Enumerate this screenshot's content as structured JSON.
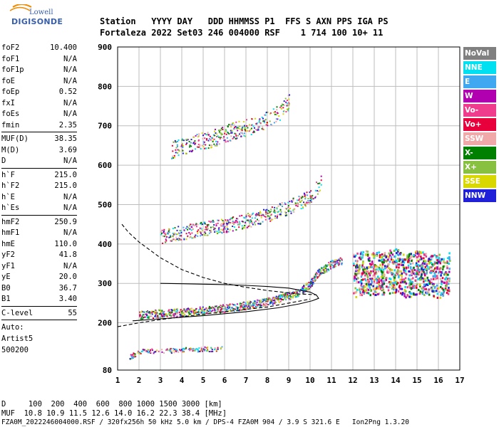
{
  "logo": {
    "line1": "Lowell",
    "line2": "DIGISONDE"
  },
  "header": {
    "row1": "Station   YYYY DAY   DDD HHMMSS P1  FFS S AXN PPS IGA PS",
    "row2": "Fortaleza 2022 Set03 246 004000 RSF    1 714 100 10+ 11"
  },
  "params": {
    "group1": [
      {
        "k": "foF2",
        "v": "10.400"
      },
      {
        "k": "foF1",
        "v": "N/A"
      },
      {
        "k": "foF1p",
        "v": "N/A"
      },
      {
        "k": "foE",
        "v": "N/A"
      },
      {
        "k": "foEp",
        "v": "0.52"
      },
      {
        "k": "fxI",
        "v": "N/A"
      },
      {
        "k": "foEs",
        "v": "N/A"
      },
      {
        "k": "fmin",
        "v": "2.35"
      }
    ],
    "group2": [
      {
        "k": "MUF(D)",
        "v": "38.35"
      },
      {
        "k": "M(D)",
        "v": "3.69"
      },
      {
        "k": "D",
        "v": "N/A"
      }
    ],
    "group3": [
      {
        "k": "h`F",
        "v": "215.0"
      },
      {
        "k": "h`F2",
        "v": "215.0"
      },
      {
        "k": "h`E",
        "v": "N/A"
      },
      {
        "k": "h`Es",
        "v": "N/A"
      }
    ],
    "group4": [
      {
        "k": "hmF2",
        "v": "250.9"
      },
      {
        "k": "hmF1",
        "v": "N/A"
      },
      {
        "k": "hmE",
        "v": "110.0"
      },
      {
        "k": "yF2",
        "v": "41.8"
      },
      {
        "k": "yF1",
        "v": "N/A"
      },
      {
        "k": "yE",
        "v": "20.0"
      },
      {
        "k": "B0",
        "v": "36.7"
      },
      {
        "k": "B1",
        "v": "3.40"
      }
    ],
    "group5": [
      {
        "k": "C-level",
        "v": "55"
      }
    ],
    "auto": [
      "Auto:",
      "Artist5",
      "500200"
    ]
  },
  "legend": [
    {
      "label": "NoVal",
      "color": "#808080"
    },
    {
      "label": "NNE",
      "color": "#00e0f0"
    },
    {
      "label": "E",
      "color": "#40a8f0"
    },
    {
      "label": "W",
      "color": "#b000b0"
    },
    {
      "label": "Vo-",
      "color": "#f03c8c"
    },
    {
      "label": "Vo+",
      "color": "#e8003c"
    },
    {
      "label": "SSW",
      "color": "#f0a8a8"
    },
    {
      "label": "X-",
      "color": "#008000"
    },
    {
      "label": "X+",
      "color": "#88c040"
    },
    {
      "label": "SSE",
      "color": "#d8d800"
    },
    {
      "label": "NNW",
      "color": "#2020d8"
    }
  ],
  "bottom": {
    "line1": "D     100  200  400  600  800 1000 1500 3000 [km]",
    "line2": "MUF  10.8 10.9 11.5 12.6 14.0 16.2 22.3 38.4 [MHz]",
    "line3": "FZA0M_2022246004000.RSF / 320fx256h 50 kHz 5.0 km / DPS-4 FZA0M 904 / 3.9 S 321.6 E   Ion2Png 1.3.20"
  },
  "chart_data": {
    "type": "scatter",
    "title": "",
    "xlabel": "",
    "ylabel": "",
    "xlim": [
      1,
      17
    ],
    "ylim": [
      80,
      900
    ],
    "xticks": [
      1,
      2,
      3,
      4,
      5,
      6,
      7,
      8,
      9,
      10,
      11,
      12,
      13,
      14,
      15,
      16,
      17
    ],
    "yticks": [
      80,
      200,
      300,
      400,
      500,
      600,
      700,
      800,
      900
    ],
    "grid": true,
    "traces": [
      {
        "name": "ordinary F2 trace",
        "x": [
          2.0,
          3.0,
          4.0,
          5.0,
          6.0,
          7.0,
          8.0,
          9.0,
          9.5,
          10.0,
          10.4,
          11.0,
          11.5
        ],
        "y": [
          220,
          225,
          228,
          232,
          238,
          245,
          255,
          270,
          280,
          300,
          330,
          350,
          360
        ]
      },
      {
        "name": "second hop",
        "x": [
          3.0,
          4.0,
          5.0,
          6.0,
          7.0,
          8.0,
          9.0,
          10.0,
          10.5
        ],
        "y": [
          420,
          430,
          440,
          448,
          460,
          475,
          495,
          520,
          560
        ]
      },
      {
        "name": "third hop",
        "x": [
          3.5,
          4.5,
          5.5,
          6.5,
          7.5,
          8.5,
          9.0
        ],
        "y": [
          640,
          655,
          670,
          690,
          705,
          730,
          760
        ]
      },
      {
        "name": "spread F",
        "x": [
          12.0,
          12.5,
          13.0,
          13.5,
          14.0,
          14.5,
          15.0,
          15.5,
          16.0,
          16.5
        ],
        "y": [
          320,
          330,
          325,
          330,
          335,
          320,
          330,
          325,
          320,
          330
        ]
      },
      {
        "name": "Es",
        "x": [
          1.5,
          2.0,
          3.0,
          4.0,
          5.0,
          6.0
        ],
        "y": [
          112,
          128,
          130,
          132,
          134,
          135
        ]
      }
    ],
    "profile_solid": {
      "x": [
        1.7,
        3.0,
        5.0,
        7.0,
        8.5,
        9.5,
        10.1,
        10.4,
        10.3,
        10.0,
        9.0,
        8.0,
        7.0,
        6.0,
        5.0,
        4.0,
        3.0
      ],
      "y": [
        205,
        210,
        218,
        228,
        238,
        248,
        256,
        262,
        270,
        278,
        288,
        292,
        295,
        297,
        298,
        299,
        300
      ]
    },
    "profile_dashed": {
      "x": [
        1.2,
        1.5,
        2.0,
        2.5,
        3.0,
        4.0,
        5.0,
        6.0,
        7.0,
        8.0,
        9.0,
        9.5,
        10.0,
        10.3
      ],
      "y": [
        450,
        430,
        405,
        385,
        365,
        335,
        315,
        300,
        290,
        282,
        276,
        273,
        272,
        271
      ]
    },
    "profile_lower_dashed": {
      "x": [
        1.0,
        2.0,
        3.0,
        4.0,
        5.0,
        6.0,
        7.0,
        8.0,
        9.0,
        10.0
      ],
      "y": [
        190,
        200,
        208,
        215,
        222,
        228,
        234,
        240,
        250,
        260
      ]
    }
  }
}
